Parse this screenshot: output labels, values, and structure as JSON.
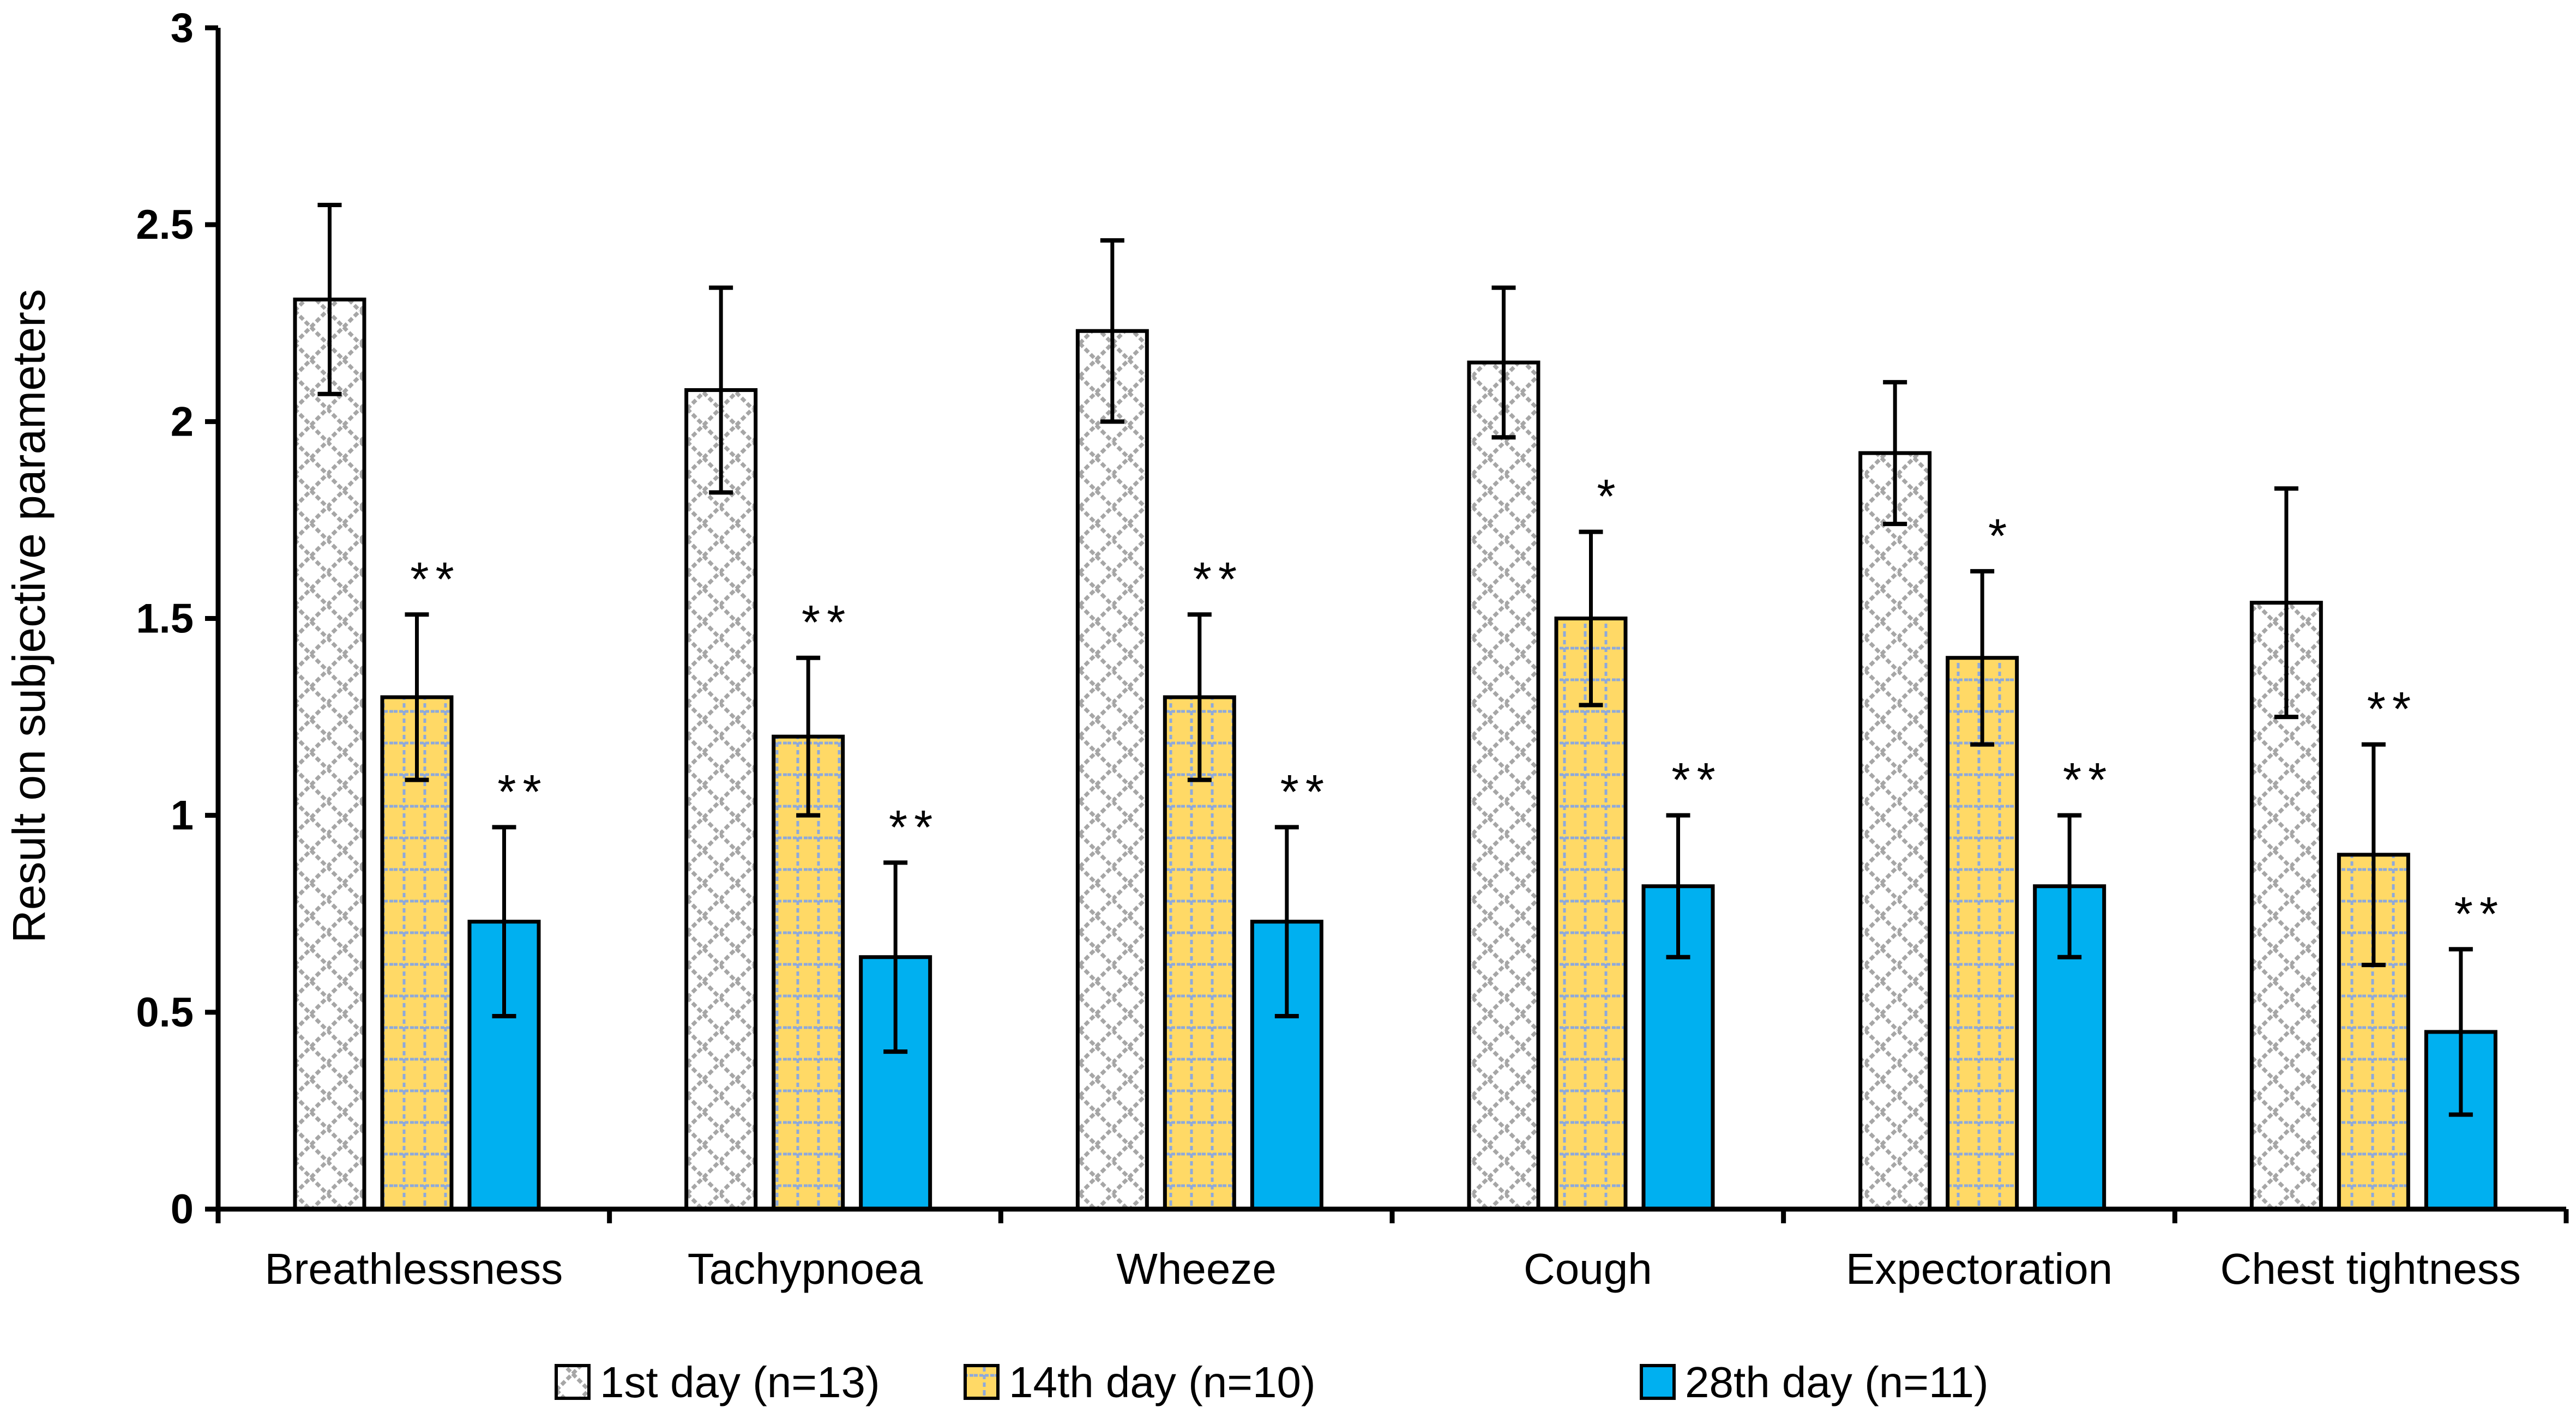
{
  "chart_data": {
    "type": "bar",
    "title": "",
    "xlabel": "",
    "ylabel": "Result on subjective parameters",
    "ylim": [
      0,
      3
    ],
    "yticks": [
      "0",
      "0.5",
      "1",
      "1.5",
      "2",
      "2.5",
      "3"
    ],
    "grid": false,
    "legend_placement": "bottom",
    "categories": [
      "Breathlessness",
      "Tachypnoea",
      "Wheeze",
      "Cough",
      "Expectoration",
      "Chest tightness"
    ],
    "series": [
      {
        "name": "1st day (n=13)",
        "color": "#A6A6A6",
        "pattern": "gray-lattice",
        "values": [
          2.31,
          2.08,
          2.23,
          2.15,
          1.92,
          1.54
        ],
        "error": [
          0.24,
          0.26,
          0.23,
          0.19,
          0.18,
          0.29
        ],
        "significance": [
          "",
          "",
          "",
          "",
          "",
          ""
        ]
      },
      {
        "name": "14th day (n=10)",
        "color": "#FFD966",
        "pattern": "blue-dotted-grid",
        "values": [
          1.3,
          1.2,
          1.3,
          1.5,
          1.4,
          0.9
        ],
        "error": [
          0.21,
          0.2,
          0.21,
          0.22,
          0.22,
          0.28
        ],
        "significance": [
          "**",
          "**",
          "**",
          "*",
          "*",
          "**"
        ]
      },
      {
        "name": "28th day (n=11)",
        "color": "#00B0F0",
        "pattern": "solid",
        "values": [
          0.73,
          0.64,
          0.73,
          0.82,
          0.82,
          0.45
        ],
        "error": [
          0.24,
          0.24,
          0.24,
          0.18,
          0.18,
          0.21
        ],
        "significance": [
          "**",
          "**",
          "**",
          "**",
          "**",
          "**"
        ]
      }
    ]
  }
}
